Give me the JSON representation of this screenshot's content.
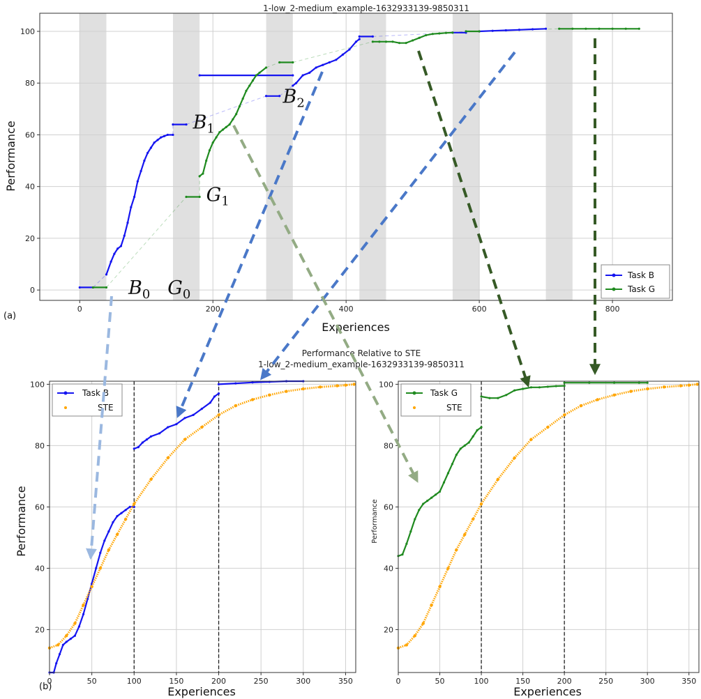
{
  "colors": {
    "task_b": "#1515f0",
    "task_g": "#1f8a1f",
    "ste": "#ffa500",
    "band": "#e0e0e0",
    "arrow_blue": "#4a78c8",
    "arrow_lightblue": "#9bb8e0",
    "arrow_darkgreen": "#365a26",
    "arrow_sage": "#93ab84"
  },
  "panels": {
    "a": "(a)",
    "b": "(b)"
  },
  "chart_data": [
    {
      "type": "line",
      "title": "1-low_2-medium_example-1632933139-9850311",
      "xlabel": "Experiences",
      "ylabel": "Performance",
      "xlim": [
        -60,
        890
      ],
      "ylim": [
        -4,
        107
      ],
      "xticks": [
        0,
        200,
        400,
        600,
        800
      ],
      "yticks": [
        0,
        20,
        40,
        60,
        80,
        100
      ],
      "grid": true,
      "legend": {
        "placement": "bottom-right",
        "entries": [
          "Task B",
          "Task G"
        ]
      },
      "shaded_intervals": [
        [
          0,
          40
        ],
        [
          140,
          180
        ],
        [
          280,
          320
        ],
        [
          420,
          460
        ],
        [
          560,
          600
        ],
        [
          700,
          740
        ]
      ],
      "annotations": [
        {
          "base": "B",
          "sub": "0",
          "x": 73,
          "y": 0
        },
        {
          "base": "G",
          "sub": "0",
          "x": 132,
          "y": 0
        },
        {
          "base": "B",
          "sub": "1",
          "x": 170,
          "y": 64
        },
        {
          "base": "G",
          "sub": "1",
          "x": 190,
          "y": 36
        },
        {
          "base": "B",
          "sub": "2",
          "x": 305,
          "y": 74
        }
      ],
      "series": [
        {
          "name": "Task B",
          "segments": [
            {
              "x": [
                0,
                20
              ],
              "y": [
                1,
                1
              ]
            },
            {
              "x": [
                40,
                47,
                52,
                57,
                62,
                67,
                72,
                77,
                82,
                87,
                92,
                97,
                102,
                107,
                112,
                117,
                122,
                127,
                132,
                140
              ],
              "y": [
                6,
                11,
                14,
                16,
                17,
                21,
                26,
                32,
                36,
                42,
                46,
                50,
                53,
                55,
                57,
                58,
                59,
                59.5,
                60,
                60
              ]
            },
            {
              "x": [
                140,
                160
              ],
              "y": [
                64,
                64
              ]
            },
            {
              "x": [
                180,
                320
              ],
              "y": [
                83,
                83
              ]
            },
            {
              "x": [
                280,
                300
              ],
              "y": [
                75,
                75
              ]
            },
            {
              "x": [
                320,
                325,
                335,
                345,
                355,
                365,
                375,
                385,
                395,
                405,
                415,
                420
              ],
              "y": [
                79,
                80,
                83,
                84,
                86,
                87,
                88,
                89,
                91,
                93,
                96,
                97
              ]
            },
            {
              "x": [
                420,
                440
              ],
              "y": [
                98,
                98
              ]
            },
            {
              "x": [
                560,
                580
              ],
              "y": [
                99.5,
                99.5
              ]
            },
            {
              "x": [
                600,
                620,
                640,
                660,
                680,
                700
              ],
              "y": [
                100,
                100.2,
                100.4,
                100.6,
                100.8,
                101
              ]
            }
          ],
          "faded_connectors": [
            [
              20,
              1,
              40,
              6
            ],
            [
              140,
              60,
              140,
              64
            ],
            [
              160,
              64,
              280,
              75
            ],
            [
              300,
              75,
              320,
              79
            ],
            [
              420,
              97,
              420,
              98
            ],
            [
              440,
              98,
              560,
              99.5
            ]
          ]
        },
        {
          "name": "Task G",
          "segments": [
            {
              "x": [
                20,
                40
              ],
              "y": [
                1,
                1
              ]
            },
            {
              "x": [
                160,
                180
              ],
              "y": [
                36,
                36
              ]
            },
            {
              "x": [
                180,
                185,
                190,
                195,
                200,
                205,
                210,
                215,
                220,
                225,
                230,
                235,
                240,
                245,
                250,
                255,
                260,
                265,
                270,
                280
              ],
              "y": [
                44,
                45,
                50,
                54,
                57,
                59,
                61,
                62,
                63,
                64,
                66,
                68,
                71,
                74,
                77,
                79,
                81,
                83,
                84,
                86
              ]
            },
            {
              "x": [
                300,
                320
              ],
              "y": [
                88,
                88
              ]
            },
            {
              "x": [
                440,
                450,
                460,
                470,
                480,
                490,
                500,
                510,
                520,
                530,
                540,
                550,
                560
              ],
              "y": [
                96,
                96,
                96,
                96,
                95.5,
                95.5,
                96.5,
                97.5,
                98.5,
                99,
                99.2,
                99.4,
                99.5
              ]
            },
            {
              "x": [
                580,
                600
              ],
              "y": [
                100,
                100
              ]
            },
            {
              "x": [
                720,
                740,
                760,
                780,
                800,
                820,
                840
              ],
              "y": [
                101,
                101,
                101,
                101,
                101,
                101,
                101
              ]
            }
          ],
          "faded_connectors": [
            [
              40,
              1,
              160,
              36
            ],
            [
              180,
              36,
              180,
              44
            ],
            [
              280,
              86,
              300,
              88
            ],
            [
              320,
              88,
              440,
              96
            ],
            [
              560,
              99.5,
              580,
              100
            ],
            [
              600,
              100,
              720,
              101
            ]
          ]
        }
      ]
    },
    {
      "type": "line",
      "title": "Performance Relative to STE",
      "subtitle": "1-low_2-medium_example-1632933139-9850311",
      "xlabel": "Experiences",
      "ylabel": "Performance",
      "xlim": [
        0,
        362
      ],
      "ylim": [
        6,
        101
      ],
      "xticks": [
        0,
        50,
        100,
        150,
        200,
        250,
        300,
        350
      ],
      "yticks": [
        20,
        40,
        60,
        80,
        100
      ],
      "vlines": [
        100,
        200
      ],
      "grid": true,
      "legend": {
        "placement": "top-left",
        "entries": [
          "Task B",
          "STE"
        ]
      },
      "series": [
        {
          "name": "Task B",
          "segments": [
            {
              "x": [
                0,
                5,
                8,
                12,
                16,
                20,
                25,
                30,
                35,
                40,
                45,
                50,
                55,
                60,
                65,
                70,
                75,
                80,
                85,
                90,
                95,
                100
              ],
              "y": [
                6,
                6,
                9,
                12,
                15,
                16,
                17,
                18,
                21,
                25,
                30,
                35,
                40,
                45,
                49,
                52,
                55,
                57,
                58,
                59,
                60,
                60
              ]
            },
            {
              "x": [
                100,
                105,
                110,
                115,
                120,
                130,
                140,
                150,
                160,
                170,
                180,
                190,
                195,
                200
              ],
              "y": [
                79,
                79.5,
                81,
                82,
                83,
                84,
                86,
                87,
                89,
                90,
                92,
                94,
                96,
                97
              ]
            },
            {
              "x": [
                200,
                220,
                240,
                260,
                280,
                300
              ],
              "y": [
                100,
                100.3,
                100.6,
                100.8,
                101,
                101
              ]
            }
          ]
        },
        {
          "name": "STE",
          "x": [
            0,
            10,
            20,
            30,
            40,
            50,
            60,
            70,
            80,
            90,
            100,
            120,
            140,
            160,
            180,
            200,
            220,
            240,
            260,
            280,
            300,
            320,
            340,
            350,
            360
          ],
          "y": [
            14,
            15,
            18,
            22,
            28,
            34,
            40,
            46,
            51,
            56,
            61,
            69,
            76,
            82,
            86,
            90,
            93,
            95,
            96.5,
            97.7,
            98.5,
            99.1,
            99.5,
            99.7,
            100
          ]
        }
      ]
    },
    {
      "type": "line",
      "title": "",
      "xlabel": "Experiences",
      "ylabel": "Performance",
      "xlim": [
        0,
        362
      ],
      "ylim": [
        6,
        101
      ],
      "xticks": [
        0,
        50,
        100,
        150,
        200,
        250,
        300,
        350
      ],
      "yticks": [
        20,
        40,
        60,
        80,
        100
      ],
      "vlines": [
        100,
        200
      ],
      "grid": true,
      "legend": {
        "placement": "top-left",
        "entries": [
          "Task G",
          "STE"
        ]
      },
      "series": [
        {
          "name": "Task G",
          "segments": [
            {
              "x": [
                0,
                5,
                10,
                15,
                20,
                25,
                30,
                35,
                40,
                45,
                50,
                55,
                60,
                65,
                70,
                75,
                80,
                85,
                90,
                95,
                100
              ],
              "y": [
                44,
                44.5,
                48,
                52,
                56,
                59,
                61,
                62,
                63,
                64,
                65,
                68,
                71,
                74,
                77,
                79,
                80,
                81,
                83,
                85,
                86
              ]
            },
            {
              "x": [
                100,
                110,
                120,
                130,
                140,
                150,
                160,
                170,
                180,
                190,
                200
              ],
              "y": [
                96,
                95.5,
                95.5,
                96.5,
                98,
                98.5,
                99,
                99,
                99.2,
                99.4,
                99.5
              ]
            },
            {
              "x": [
                200,
                230,
                260,
                290,
                300
              ],
              "y": [
                100.5,
                100.5,
                100.5,
                100.5,
                100.5
              ]
            }
          ]
        },
        {
          "name": "STE",
          "x": [
            0,
            10,
            20,
            30,
            40,
            50,
            60,
            70,
            80,
            90,
            100,
            120,
            140,
            160,
            180,
            200,
            220,
            240,
            260,
            280,
            300,
            320,
            340,
            350,
            360
          ],
          "y": [
            14,
            15,
            18,
            22,
            28,
            34,
            40,
            46,
            51,
            56,
            61,
            69,
            76,
            82,
            86,
            90,
            93,
            95,
            96.5,
            97.7,
            98.5,
            99.1,
            99.5,
            99.7,
            100
          ]
        }
      ]
    }
  ]
}
